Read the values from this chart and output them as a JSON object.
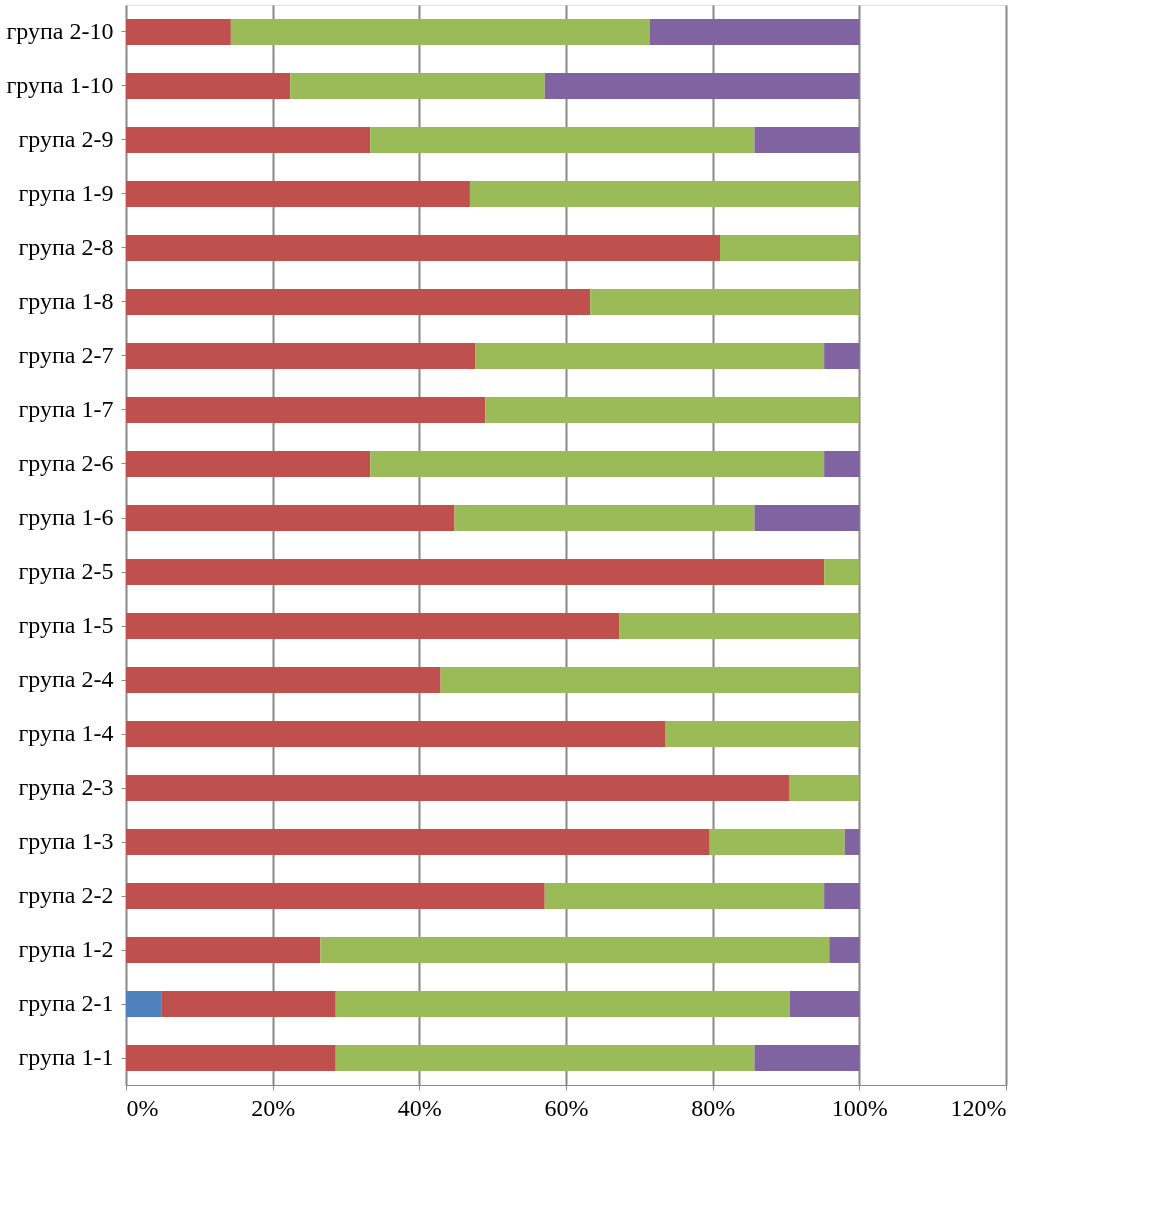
{
  "chart_data": {
    "type": "bar",
    "orientation": "horizontal",
    "stacked": true,
    "categories": [
      "група 2-10",
      "група 1-10",
      "група 2-9",
      "група 1-9",
      "група 2-8",
      "група 1-8",
      "група 2-7",
      "група 1-7",
      "група 2-6",
      "група 1-6",
      "група 2-5",
      "група 1-5",
      "група 2-4",
      "група 1-4",
      "група 2-3",
      "група 1-3",
      "група 2-2",
      "група 1-2",
      "група 2-1",
      "група 1-1"
    ],
    "series": [
      {
        "color": "#4f81bd",
        "values": [
          null,
          null,
          null,
          null,
          null,
          null,
          null,
          null,
          null,
          null,
          null,
          null,
          null,
          null,
          null,
          null,
          null,
          null,
          4.8,
          null
        ]
      },
      {
        "color": "#c0504d",
        "values": [
          14.3,
          22.4,
          33.3,
          46.9,
          81,
          63.3,
          47.6,
          49,
          33.3,
          44.8,
          95.2,
          67.3,
          42.9,
          73.5,
          90.5,
          79.6,
          57.1,
          26.5,
          23.8,
          28.6
        ]
      },
      {
        "color": "#9bbb59",
        "values": [
          57.1,
          34.7,
          52.4,
          53.1,
          19,
          36.7,
          47.6,
          51,
          61.9,
          40.9,
          4.8,
          32.7,
          57.1,
          26.5,
          9.5,
          18.4,
          38.1,
          69.4,
          61.9,
          57.1
        ]
      },
      {
        "color": "#8064a2",
        "values": [
          28.6,
          42.9,
          14.3,
          null,
          null,
          null,
          4.8,
          null,
          4.8,
          14.3,
          null,
          null,
          null,
          null,
          null,
          2.0,
          4.8,
          4.1,
          9.5,
          14.3
        ]
      }
    ],
    "xlim": [
      0,
      120
    ],
    "xticks": [
      {
        "value": 0,
        "label": "0%"
      },
      {
        "value": 20,
        "label": "20%"
      },
      {
        "value": 40,
        "label": "40%"
      },
      {
        "value": 60,
        "label": "60%"
      },
      {
        "value": 80,
        "label": "80%"
      },
      {
        "value": 100,
        "label": "100%"
      },
      {
        "value": 120,
        "label": "120%"
      }
    ],
    "grid": "x",
    "legend": false
  }
}
